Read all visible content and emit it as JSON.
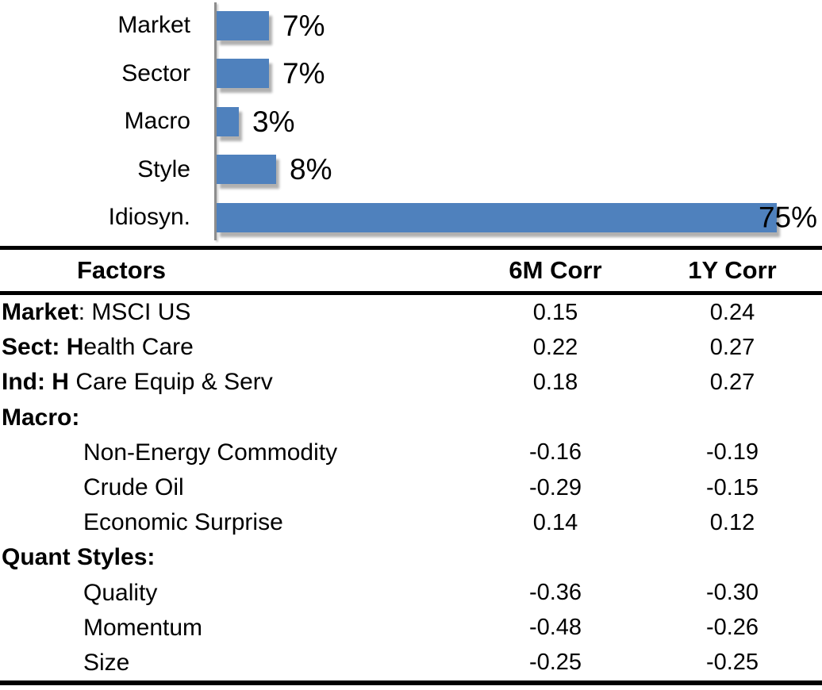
{
  "chart_data": {
    "type": "bar",
    "orientation": "horizontal",
    "title": "",
    "xlabel": "",
    "ylabel": "",
    "categories": [
      "Market",
      "Sector",
      "Macro",
      "Style",
      "Idiosyn."
    ],
    "values": [
      7,
      7,
      3,
      8,
      75
    ],
    "value_labels": [
      "7%",
      "7%",
      "3%",
      "8%",
      "75%"
    ],
    "xlim": [
      0,
      81
    ],
    "grid": false,
    "legend_position": "none",
    "bar_color": "#4F81BD",
    "axis_color": "#8D8D8D"
  },
  "table": {
    "headers": {
      "factors": "Factors",
      "six_m": "6M Corr",
      "one_y": "1Y Corr"
    },
    "rows": [
      {
        "bold": "Market",
        "rest": ": MSCI US",
        "indent": false,
        "six_m": "0.15",
        "one_y": "0.24"
      },
      {
        "bold": "Sect: H",
        "rest": "ealth Care",
        "indent": false,
        "six_m": "0.22",
        "one_y": "0.27"
      },
      {
        "bold": "Ind: H",
        "rest": " Care Equip & Serv",
        "indent": false,
        "six_m": "0.18",
        "one_y": "0.27"
      },
      {
        "bold": "Macro:",
        "rest": "",
        "indent": false,
        "six_m": "",
        "one_y": ""
      },
      {
        "bold": "",
        "rest": "Non-Energy Commodity",
        "indent": true,
        "six_m": "-0.16",
        "one_y": "-0.19"
      },
      {
        "bold": "",
        "rest": "Crude Oil",
        "indent": true,
        "six_m": "-0.29",
        "one_y": "-0.15"
      },
      {
        "bold": "",
        "rest": "Economic Surprise",
        "indent": true,
        "six_m": "0.14",
        "one_y": "0.12"
      },
      {
        "bold": "Quant Styles:",
        "rest": "",
        "indent": false,
        "six_m": "",
        "one_y": ""
      },
      {
        "bold": "",
        "rest": "Quality",
        "indent": true,
        "six_m": "-0.36",
        "one_y": "-0.30"
      },
      {
        "bold": "",
        "rest": "Momentum",
        "indent": true,
        "six_m": "-0.48",
        "one_y": "-0.26"
      },
      {
        "bold": "",
        "rest": "Size",
        "indent": true,
        "six_m": "-0.25",
        "one_y": "-0.25"
      }
    ]
  }
}
